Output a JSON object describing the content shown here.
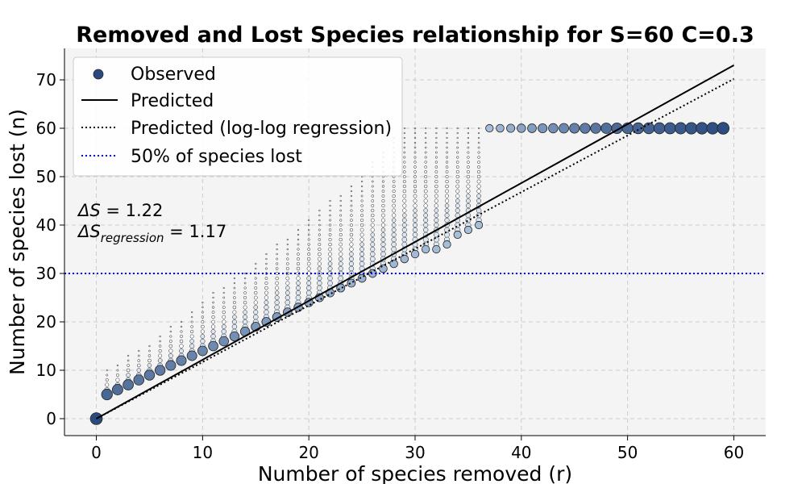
{
  "chart_data": {
    "type": "scatter",
    "title": "Removed and Lost Species relationship for S=60 C=0.3",
    "xlabel": "Number of species removed (r)",
    "ylabel": "Number of species lost (n)",
    "xlim": [
      -3,
      63
    ],
    "ylim": [
      -3.5,
      76.5
    ],
    "xticks": [
      0,
      10,
      20,
      30,
      40,
      50,
      60
    ],
    "yticks": [
      0,
      10,
      20,
      30,
      40,
      50,
      60,
      70
    ],
    "grid": true,
    "legend_position": "top-left",
    "legend": [
      {
        "label": "Observed",
        "style": "marker"
      },
      {
        "label": "Predicted",
        "style": "solid"
      },
      {
        "label": "Predicted (log-log regression)",
        "style": "dotted"
      },
      {
        "label": "50% of species lost",
        "style": "dotted-blue"
      }
    ],
    "annotations": {
      "line1_symbol": "ΔS",
      "line1_value": " = 1.22",
      "line2_symbol": "ΔS",
      "line2_sub": "regression",
      "line2_value": " = 1.17"
    },
    "observed_main": {
      "x": [
        0,
        1,
        2,
        3,
        4,
        5,
        6,
        7,
        8,
        9,
        10,
        11,
        12,
        13,
        14,
        15,
        16,
        17,
        18,
        19,
        20,
        21,
        22,
        23,
        24,
        25,
        26,
        27,
        28,
        29,
        30,
        31,
        32,
        33,
        34,
        35,
        36,
        37,
        38,
        39,
        40,
        41,
        42,
        43,
        44,
        45,
        46,
        47,
        48,
        49,
        50,
        51,
        52,
        53,
        54,
        55,
        56,
        57,
        58,
        59
      ],
      "y": [
        0,
        5,
        6,
        7,
        8,
        9,
        10,
        11,
        12,
        13,
        14,
        15,
        16,
        17,
        18,
        19,
        20,
        21,
        22,
        23,
        24,
        25,
        26,
        27,
        28,
        29,
        30,
        31,
        32,
        33,
        34,
        35,
        35,
        36,
        38,
        39,
        40,
        60,
        60,
        60,
        60,
        60,
        60,
        60,
        60,
        60,
        60,
        60,
        60,
        60,
        60,
        60,
        60,
        60,
        60,
        60,
        60,
        60,
        60,
        60
      ],
      "weight": [
        1.0,
        0.8,
        0.75,
        0.72,
        0.7,
        0.68,
        0.66,
        0.64,
        0.62,
        0.6,
        0.58,
        0.56,
        0.54,
        0.52,
        0.5,
        0.47,
        0.45,
        0.43,
        0.4,
        0.38,
        0.36,
        0.34,
        0.32,
        0.3,
        0.29,
        0.28,
        0.27,
        0.26,
        0.25,
        0.24,
        0.23,
        0.22,
        0.22,
        0.21,
        0.2,
        0.2,
        0.2,
        0.2,
        0.26,
        0.32,
        0.38,
        0.43,
        0.48,
        0.53,
        0.58,
        0.62,
        0.66,
        0.7,
        0.74,
        0.78,
        0.8,
        0.82,
        0.84,
        0.86,
        0.88,
        0.9,
        0.92,
        0.94,
        0.96,
        0.98
      ]
    },
    "observed_spread": {
      "description_free": true,
      "x_from": 1,
      "x_to": 52,
      "upper_envelope": [
        [
          1,
          10
        ],
        [
          5,
          15
        ],
        [
          10,
          24
        ],
        [
          15,
          32
        ],
        [
          20,
          41
        ],
        [
          25,
          50
        ],
        [
          29,
          60
        ],
        [
          52,
          60
        ]
      ]
    },
    "predicted": {
      "slope": 1.217,
      "intercept": 0,
      "x": [
        0,
        60
      ]
    },
    "predicted_regression": {
      "slope": 1.17,
      "intercept": 0,
      "x": [
        0,
        60
      ]
    },
    "half_line_y": 30,
    "colors": {
      "background": "#f4f4f4",
      "grid": "#cccccc",
      "predicted": "#000000",
      "half_line": "#0000dd",
      "marker_dark": "#2a4a7f",
      "marker_light": "#c6dbef",
      "marker_edge": "#222222"
    }
  }
}
